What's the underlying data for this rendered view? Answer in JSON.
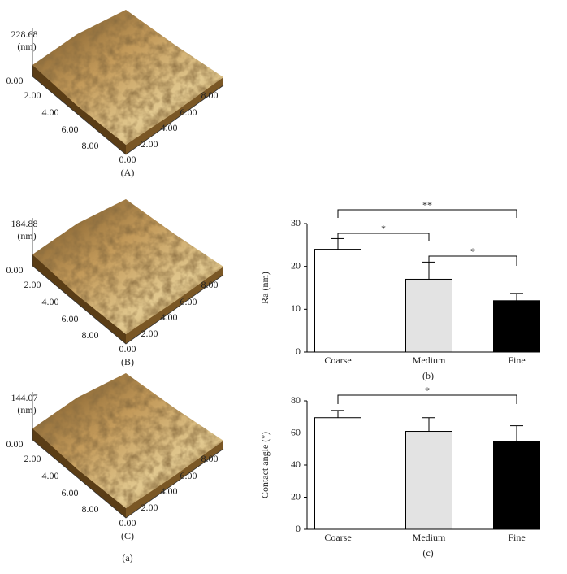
{
  "afm_axis_ticks": [
    "0.00",
    "2.00",
    "4.00",
    "6.00",
    "8.00"
  ],
  "afm_panels": [
    {
      "z_max": "228.68",
      "z_unit": "(nm)",
      "caption": "(A)"
    },
    {
      "z_max": "184.88",
      "z_unit": "(nm)",
      "caption": "(B)"
    },
    {
      "z_max": "144.07",
      "z_unit": "(nm)",
      "caption": "(C)"
    }
  ],
  "afm_caption": "(a)",
  "chart_data": [
    {
      "type": "bar",
      "ylabel": "Ra (nm)",
      "caption": "(b)",
      "categories": [
        "Coarse",
        "Medium",
        "Fine"
      ],
      "values": [
        24,
        17,
        12
      ],
      "errors": [
        2.5,
        4,
        1.7
      ],
      "colors": [
        "#ffffff",
        "#e3e3e3",
        "#000000"
      ],
      "ylim": [
        0,
        30
      ],
      "yticks": [
        0,
        10,
        20,
        30
      ],
      "significance": [
        {
          "between": [
            "Coarse",
            "Fine"
          ],
          "label": "**"
        },
        {
          "between": [
            "Coarse",
            "Medium"
          ],
          "label": "*"
        },
        {
          "between": [
            "Medium",
            "Fine"
          ],
          "label": "*"
        }
      ]
    },
    {
      "type": "bar",
      "ylabel": "Contact angle (°)",
      "caption": "(c)",
      "categories": [
        "Coarse",
        "Medium",
        "Fine"
      ],
      "values": [
        69.5,
        61,
        54.5
      ],
      "errors": [
        4.5,
        8.5,
        10
      ],
      "colors": [
        "#ffffff",
        "#e3e3e3",
        "#000000"
      ],
      "ylim": [
        0,
        80
      ],
      "yticks": [
        0,
        20,
        40,
        60,
        80
      ],
      "significance": [
        {
          "between": [
            "Coarse",
            "Fine"
          ],
          "label": "*"
        }
      ]
    }
  ]
}
